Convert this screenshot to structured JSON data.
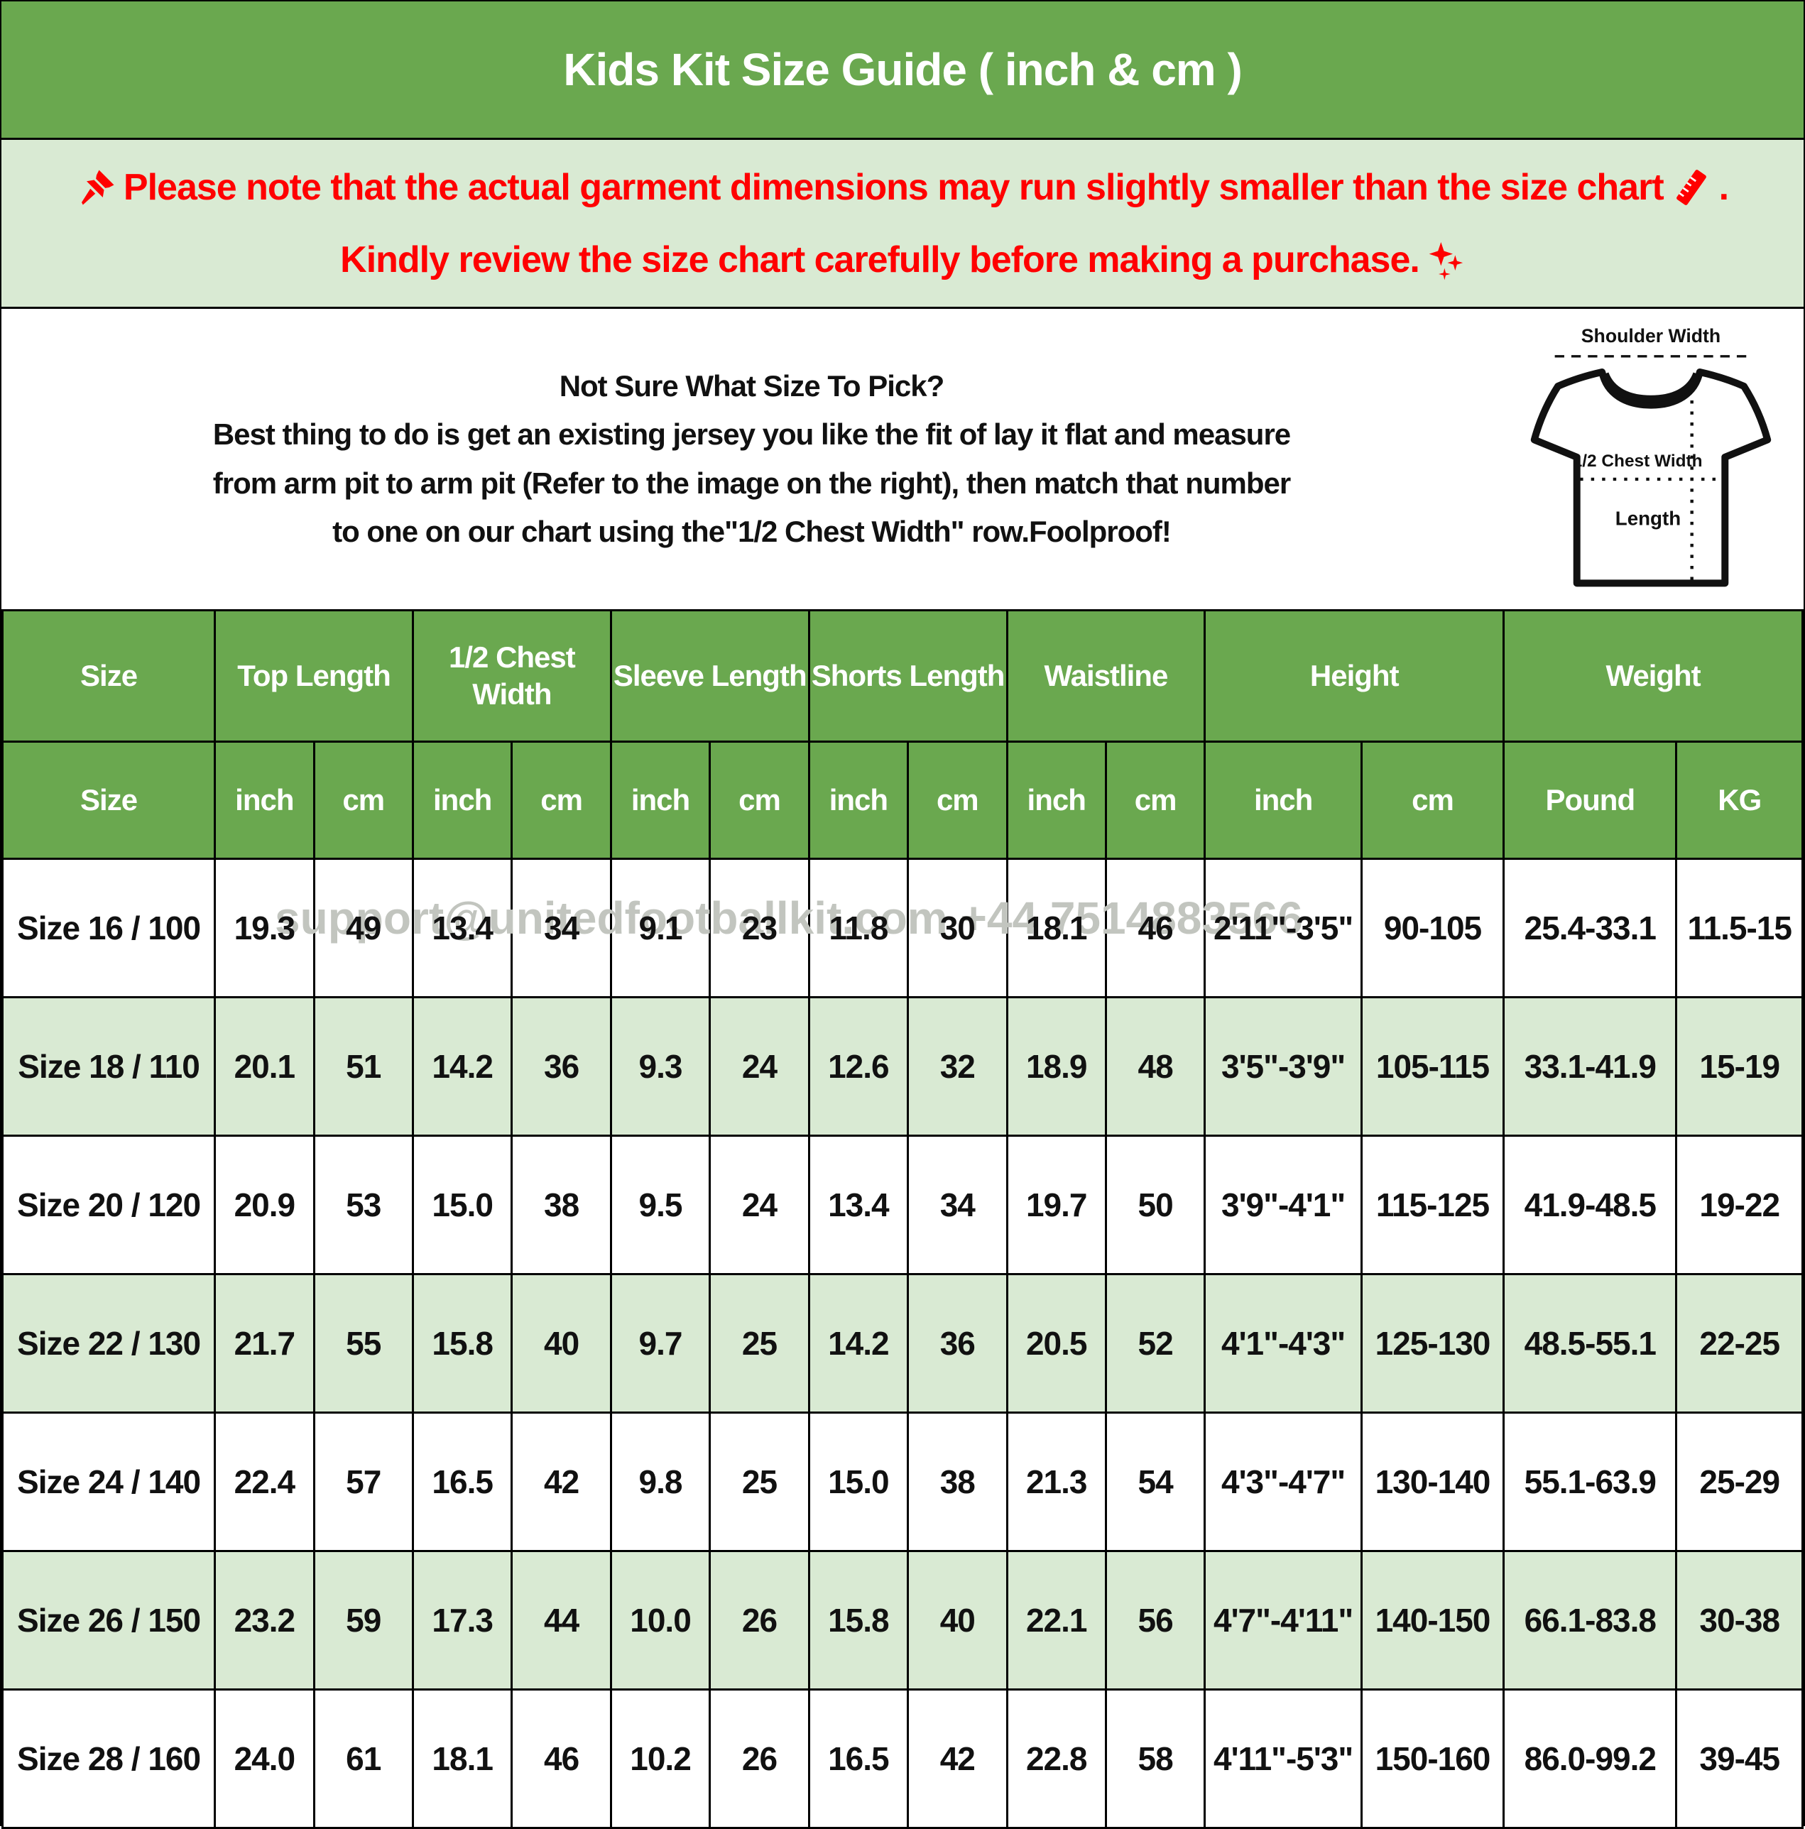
{
  "title": "Kids Kit Size Guide ( inch & cm )",
  "notice": {
    "line1": "Please note that the actual garment dimensions may run slightly smaller than the size chart",
    "line1_end": ".",
    "line2": "Kindly review the size chart carefully before making a purchase."
  },
  "guide": {
    "heading": "Not Sure What Size To Pick?",
    "line1": "Best thing to do is get an existing jersey you like the fit of lay it flat and measure",
    "line2": "from arm pit to arm pit (Refer to the image on the right), then match that number",
    "line3": "to one on our chart using the\"1/2 Chest Width\" row.Foolproof!"
  },
  "diagram": {
    "shoulder_label": "Shoulder Width",
    "chest_label": "1/2 Chest Width",
    "length_label": "Length"
  },
  "watermark": "support@unitedfootballkit.com +44 7514883566",
  "colors": {
    "accent_green": "#6aa84f",
    "light_green": "#d9ead3",
    "notice_red": "#ff0000"
  },
  "table": {
    "header_groups": [
      {
        "label": "Size",
        "span": 1
      },
      {
        "label": "Top Length",
        "span": 2
      },
      {
        "label": "1/2 Chest Width",
        "span": 2
      },
      {
        "label": "Sleeve Length",
        "span": 2
      },
      {
        "label": "Shorts Length",
        "span": 2
      },
      {
        "label": "Waistline",
        "span": 2
      },
      {
        "label": "Height",
        "span": 2
      },
      {
        "label": "Weight",
        "span": 2
      }
    ],
    "subheader": [
      "Size",
      "inch",
      "cm",
      "inch",
      "cm",
      "inch",
      "cm",
      "inch",
      "cm",
      "inch",
      "cm",
      "inch",
      "cm",
      "Pound",
      "KG"
    ],
    "rows": [
      [
        "Size 16 / 100",
        "19.3",
        "49",
        "13.4",
        "34",
        "9.1",
        "23",
        "11.8",
        "30",
        "18.1",
        "46",
        "2'11\"-3'5\"",
        "90-105",
        "25.4-33.1",
        "11.5-15"
      ],
      [
        "Size 18 / 110",
        "20.1",
        "51",
        "14.2",
        "36",
        "9.3",
        "24",
        "12.6",
        "32",
        "18.9",
        "48",
        "3'5\"-3'9\"",
        "105-115",
        "33.1-41.9",
        "15-19"
      ],
      [
        "Size 20 / 120",
        "20.9",
        "53",
        "15.0",
        "38",
        "9.5",
        "24",
        "13.4",
        "34",
        "19.7",
        "50",
        "3'9\"-4'1\"",
        "115-125",
        "41.9-48.5",
        "19-22"
      ],
      [
        "Size 22 / 130",
        "21.7",
        "55",
        "15.8",
        "40",
        "9.7",
        "25",
        "14.2",
        "36",
        "20.5",
        "52",
        "4'1\"-4'3\"",
        "125-130",
        "48.5-55.1",
        "22-25"
      ],
      [
        "Size 24 / 140",
        "22.4",
        "57",
        "16.5",
        "42",
        "9.8",
        "25",
        "15.0",
        "38",
        "21.3",
        "54",
        "4'3\"-4'7\"",
        "130-140",
        "55.1-63.9",
        "25-29"
      ],
      [
        "Size 26 / 150",
        "23.2",
        "59",
        "17.3",
        "44",
        "10.0",
        "26",
        "15.8",
        "40",
        "22.1",
        "56",
        "4'7\"-4'11\"",
        "140-150",
        "66.1-83.8",
        "30-38"
      ],
      [
        "Size 28 / 160",
        "24.0",
        "61",
        "18.1",
        "46",
        "10.2",
        "26",
        "16.5",
        "42",
        "22.8",
        "58",
        "4'11\"-5'3\"",
        "150-160",
        "86.0-99.2",
        "39-45"
      ]
    ]
  }
}
